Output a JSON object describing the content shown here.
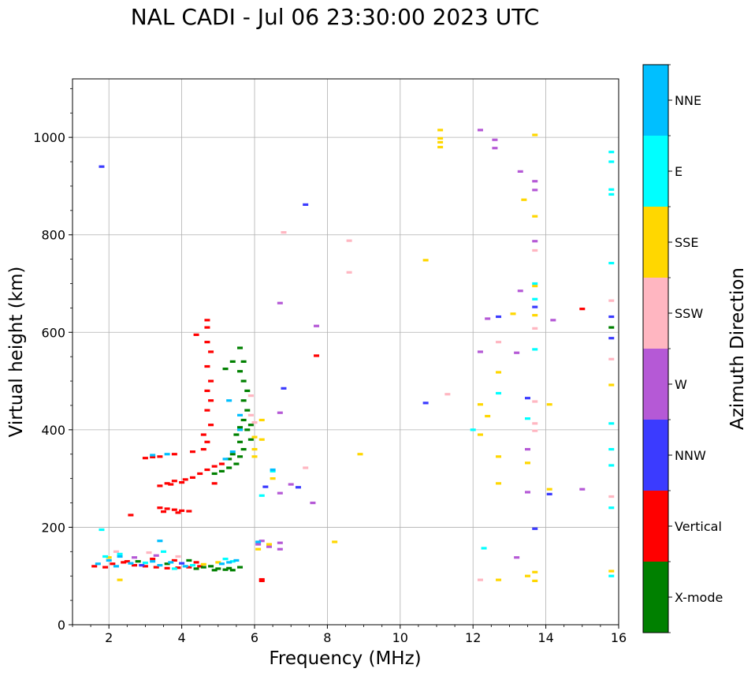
{
  "chart_data": {
    "type": "scatter",
    "title": "NAL CADI - Jul 06 23:30:00 2023 UTC",
    "xlabel": "Frequency (MHz)",
    "ylabel": "Virtual height (km)",
    "xlim": [
      1,
      16
    ],
    "ylim": [
      0,
      1120
    ],
    "xticks": [
      2,
      4,
      6,
      8,
      10,
      12,
      14,
      16
    ],
    "xticklabels": [
      "2",
      "4",
      "6",
      "8",
      "10",
      "12",
      "14",
      "16"
    ],
    "yticks": [
      0,
      200,
      400,
      600,
      800,
      1000
    ],
    "yticklabels": [
      "0",
      "200",
      "400",
      "600",
      "800",
      "1000"
    ],
    "grid": true,
    "colorbar": {
      "title": "Azimuth Direction",
      "categories": [
        {
          "label": "X-mode",
          "color": "#008000"
        },
        {
          "label": "Vertical",
          "color": "#ff0000"
        },
        {
          "label": "NNW",
          "color": "#3b3bff"
        },
        {
          "label": "W",
          "color": "#b559d6"
        },
        {
          "label": "SSW",
          "color": "#ffb6c1"
        },
        {
          "label": "SSE",
          "color": "#ffd700"
        },
        {
          "label": "E",
          "color": "#00ffff"
        },
        {
          "label": "NNE",
          "color": "#00bfff"
        }
      ]
    },
    "series": [
      {
        "name": "Vertical",
        "points": [
          [
            1.6,
            120
          ],
          [
            1.9,
            118
          ],
          [
            2.1,
            125
          ],
          [
            2.4,
            128
          ],
          [
            2.7,
            122
          ],
          [
            3.0,
            120
          ],
          [
            3.3,
            118
          ],
          [
            3.6,
            116
          ],
          [
            3.9,
            117
          ],
          [
            4.2,
            118
          ],
          [
            4.5,
            120
          ],
          [
            2.5,
            130
          ],
          [
            3.2,
            135
          ],
          [
            3.8,
            132
          ],
          [
            4.4,
            128
          ],
          [
            3.0,
            342
          ],
          [
            3.2,
            344
          ],
          [
            3.4,
            345
          ],
          [
            3.8,
            350
          ],
          [
            4.3,
            355
          ],
          [
            3.4,
            240
          ],
          [
            3.6,
            238
          ],
          [
            3.8,
            236
          ],
          [
            4.0,
            234
          ],
          [
            4.2,
            233
          ],
          [
            3.5,
            232
          ],
          [
            3.9,
            230
          ],
          [
            3.4,
            285
          ],
          [
            3.6,
            290
          ],
          [
            3.8,
            295
          ],
          [
            4.1,
            298
          ],
          [
            4.3,
            302
          ],
          [
            4.5,
            310
          ],
          [
            4.7,
            318
          ],
          [
            4.9,
            325
          ],
          [
            5.1,
            330
          ],
          [
            3.7,
            288
          ],
          [
            4.0,
            292
          ],
          [
            4.6,
            360
          ],
          [
            4.7,
            375
          ],
          [
            4.6,
            390
          ],
          [
            4.8,
            410
          ],
          [
            4.7,
            440
          ],
          [
            4.8,
            460
          ],
          [
            4.7,
            480
          ],
          [
            4.8,
            500
          ],
          [
            4.7,
            530
          ],
          [
            4.8,
            560
          ],
          [
            4.7,
            580
          ],
          [
            4.7,
            610
          ],
          [
            4.7,
            625
          ],
          [
            4.4,
            595
          ],
          [
            6.2,
            90
          ],
          [
            6.2,
            93
          ],
          [
            7.7,
            552
          ],
          [
            15.0,
            648
          ],
          [
            2.6,
            225
          ],
          [
            4.9,
            290
          ]
        ]
      },
      {
        "name": "X-mode",
        "points": [
          [
            4.4,
            115
          ],
          [
            4.6,
            118
          ],
          [
            4.8,
            120
          ],
          [
            5.0,
            115
          ],
          [
            5.2,
            113
          ],
          [
            5.4,
            112
          ],
          [
            5.6,
            118
          ],
          [
            4.9,
            112
          ],
          [
            5.3,
            116
          ],
          [
            4.9,
            310
          ],
          [
            5.1,
            315
          ],
          [
            5.3,
            322
          ],
          [
            5.5,
            330
          ],
          [
            5.6,
            345
          ],
          [
            5.7,
            360
          ],
          [
            5.6,
            375
          ],
          [
            5.5,
            390
          ],
          [
            5.6,
            405
          ],
          [
            5.7,
            420
          ],
          [
            5.8,
            440
          ],
          [
            5.7,
            460
          ],
          [
            5.8,
            480
          ],
          [
            5.7,
            500
          ],
          [
            5.6,
            520
          ],
          [
            5.7,
            540
          ],
          [
            5.6,
            568
          ],
          [
            5.4,
            540
          ],
          [
            5.2,
            525
          ],
          [
            5.9,
            410
          ],
          [
            5.9,
            380
          ],
          [
            5.4,
            350
          ],
          [
            5.3,
            340
          ],
          [
            5.8,
            400
          ],
          [
            2.8,
            130
          ],
          [
            3.6,
            125
          ],
          [
            4.2,
            132
          ],
          [
            15.8,
            610
          ]
        ]
      },
      {
        "name": "NNW",
        "points": [
          [
            1.8,
            940
          ],
          [
            7.4,
            862
          ],
          [
            10.7,
            455
          ],
          [
            12.7,
            632
          ],
          [
            13.7,
            652
          ],
          [
            13.5,
            465
          ],
          [
            13.7,
            197
          ],
          [
            14.1,
            268
          ],
          [
            15.8,
            632
          ],
          [
            15.8,
            588
          ],
          [
            6.8,
            485
          ],
          [
            7.2,
            282
          ],
          [
            6.3,
            283
          ],
          [
            2.9,
            122
          ],
          [
            4.0,
            126
          ]
        ]
      },
      {
        "name": "W",
        "points": [
          [
            6.2,
            172
          ],
          [
            6.4,
            160
          ],
          [
            6.7,
            168
          ],
          [
            6.7,
            155
          ],
          [
            6.7,
            270
          ],
          [
            7.0,
            288
          ],
          [
            7.6,
            250
          ],
          [
            6.7,
            435
          ],
          [
            6.7,
            660
          ],
          [
            7.7,
            613
          ],
          [
            12.2,
            1015
          ],
          [
            12.6,
            995
          ],
          [
            12.6,
            978
          ],
          [
            13.3,
            930
          ],
          [
            13.7,
            910
          ],
          [
            13.7,
            892
          ],
          [
            13.7,
            787
          ],
          [
            13.3,
            685
          ],
          [
            14.2,
            625
          ],
          [
            12.4,
            628
          ],
          [
            13.2,
            558
          ],
          [
            12.2,
            560
          ],
          [
            13.2,
            138
          ],
          [
            13.5,
            272
          ],
          [
            13.5,
            360
          ],
          [
            15.0,
            278
          ],
          [
            6.1,
            165
          ],
          [
            3.3,
            142
          ],
          [
            2.7,
            138
          ]
        ]
      },
      {
        "name": "SSW",
        "points": [
          [
            6.8,
            805
          ],
          [
            8.6,
            788
          ],
          [
            8.6,
            723
          ],
          [
            11.3,
            473
          ],
          [
            12.7,
            580
          ],
          [
            13.7,
            608
          ],
          [
            13.7,
            768
          ],
          [
            13.7,
            458
          ],
          [
            13.7,
            413
          ],
          [
            13.7,
            398
          ],
          [
            15.8,
            665
          ],
          [
            15.8,
            545
          ],
          [
            15.8,
            263
          ],
          [
            12.2,
            92
          ],
          [
            7.4,
            322
          ],
          [
            5.9,
            470
          ],
          [
            5.9,
            430
          ],
          [
            6.0,
            415
          ],
          [
            2.2,
            150
          ],
          [
            3.1,
            148
          ],
          [
            3.9,
            140
          ]
        ]
      },
      {
        "name": "SSE",
        "points": [
          [
            11.1,
            1015
          ],
          [
            11.1,
            998
          ],
          [
            11.1,
            990
          ],
          [
            11.1,
            980
          ],
          [
            13.7,
            1005
          ],
          [
            13.4,
            872
          ],
          [
            13.7,
            838
          ],
          [
            10.7,
            748
          ],
          [
            13.7,
            695
          ],
          [
            13.1,
            638
          ],
          [
            13.7,
            635
          ],
          [
            12.7,
            518
          ],
          [
            12.2,
            452
          ],
          [
            12.2,
            390
          ],
          [
            12.4,
            428
          ],
          [
            12.7,
            345
          ],
          [
            13.5,
            332
          ],
          [
            12.7,
            290
          ],
          [
            14.1,
            278
          ],
          [
            13.5,
            100
          ],
          [
            13.7,
            108
          ],
          [
            13.7,
            90
          ],
          [
            12.7,
            92
          ],
          [
            15.8,
            110
          ],
          [
            15.8,
            492
          ],
          [
            14.1,
            452
          ],
          [
            8.9,
            350
          ],
          [
            8.2,
            170
          ],
          [
            6.0,
            360
          ],
          [
            6.0,
            345
          ],
          [
            6.0,
            385
          ],
          [
            6.2,
            380
          ],
          [
            6.2,
            420
          ],
          [
            6.5,
            300
          ],
          [
            6.4,
            165
          ],
          [
            6.1,
            155
          ],
          [
            2.3,
            92
          ],
          [
            2.0,
            138
          ],
          [
            5.0,
            128
          ],
          [
            4.6,
            124
          ]
        ]
      },
      {
        "name": "E",
        "points": [
          [
            15.8,
            970
          ],
          [
            15.8,
            950
          ],
          [
            15.8,
            893
          ],
          [
            15.8,
            883
          ],
          [
            15.8,
            742
          ],
          [
            15.8,
            413
          ],
          [
            15.8,
            360
          ],
          [
            15.8,
            327
          ],
          [
            15.8,
            240
          ],
          [
            15.8,
            100
          ],
          [
            13.7,
            668
          ],
          [
            13.7,
            565
          ],
          [
            12.7,
            475
          ],
          [
            13.5,
            423
          ],
          [
            12.0,
            400
          ],
          [
            12.3,
            157
          ],
          [
            13.7,
            700
          ],
          [
            6.2,
            265
          ],
          [
            6.5,
            315
          ],
          [
            5.4,
            130
          ],
          [
            5.2,
            135
          ],
          [
            1.8,
            195
          ],
          [
            1.9,
            140
          ],
          [
            2.3,
            145
          ],
          [
            3.5,
            150
          ],
          [
            3.0,
            127
          ],
          [
            4.3,
            122
          ],
          [
            3.8,
            115
          ]
        ]
      },
      {
        "name": "NNE",
        "points": [
          [
            1.7,
            125
          ],
          [
            2.0,
            132
          ],
          [
            2.2,
            120
          ],
          [
            2.6,
            126
          ],
          [
            3.2,
            130
          ],
          [
            3.4,
            122
          ],
          [
            3.7,
            128
          ],
          [
            4.1,
            120
          ],
          [
            5.1,
            125
          ],
          [
            5.3,
            128
          ],
          [
            5.5,
            132
          ],
          [
            5.2,
            340
          ],
          [
            5.4,
            355
          ],
          [
            5.6,
            400
          ],
          [
            5.6,
            430
          ],
          [
            5.3,
            460
          ],
          [
            3.2,
            348
          ],
          [
            3.6,
            350
          ],
          [
            6.5,
            318
          ],
          [
            6.1,
            170
          ],
          [
            3.4,
            172
          ],
          [
            2.3,
            140
          ]
        ]
      }
    ]
  }
}
